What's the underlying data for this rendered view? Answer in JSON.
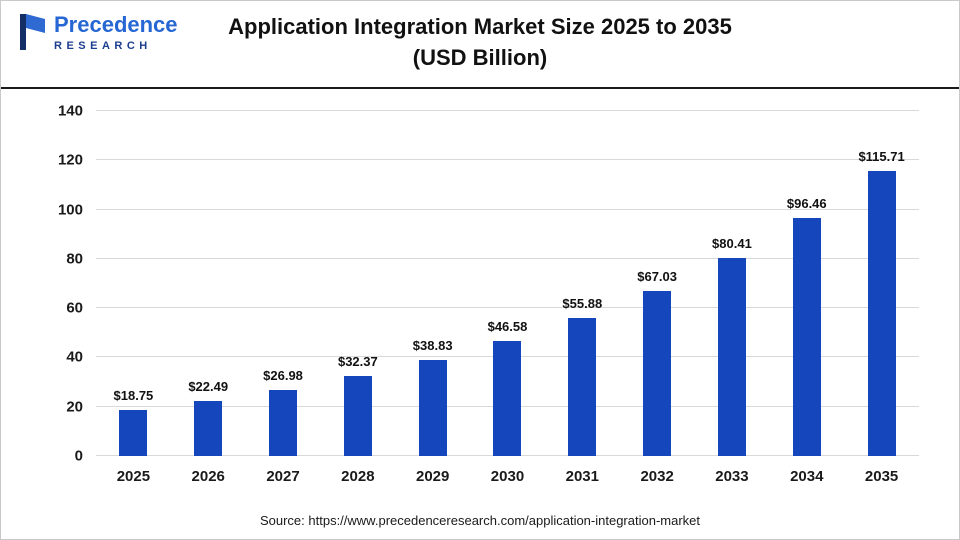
{
  "header": {
    "logo_line1": "Precedence",
    "logo_line2": "RESEARCH",
    "title_line1": "Application Integration Market Size 2025 to 2035",
    "title_line2": "(USD Billion)"
  },
  "footer": {
    "source": "Source: https://www.precedenceresearch.com/application-integration-market"
  },
  "colors": {
    "bar": "#1646BC",
    "gridline": "#d9d9d9",
    "logo_primary": "#2767d3",
    "logo_secondary": "#1c3e8e",
    "header_divider": "#1a1a1a"
  },
  "chart_data": {
    "type": "bar",
    "title": "Application Integration Market Size 2025 to 2035 (USD Billion)",
    "categories": [
      "2025",
      "2026",
      "2027",
      "2028",
      "2029",
      "2030",
      "2031",
      "2032",
      "2033",
      "2034",
      "2035"
    ],
    "values": [
      18.75,
      22.49,
      26.98,
      32.37,
      38.83,
      46.58,
      55.88,
      67.03,
      80.41,
      96.46,
      115.71
    ],
    "value_labels": [
      "$18.75",
      "$22.49",
      "$26.98",
      "$32.37",
      "$38.83",
      "$46.58",
      "$55.88",
      "$67.03",
      "$80.41",
      "$96.46",
      "$115.71"
    ],
    "xlabel": "",
    "ylabel": "",
    "ylim": [
      0,
      140
    ],
    "yticks": [
      0,
      20,
      40,
      60,
      80,
      100,
      120,
      140
    ],
    "grid": true,
    "legend": false,
    "bar_color": "#1646BC",
    "source": "https://www.precedenceresearch.com/application-integration-market"
  }
}
